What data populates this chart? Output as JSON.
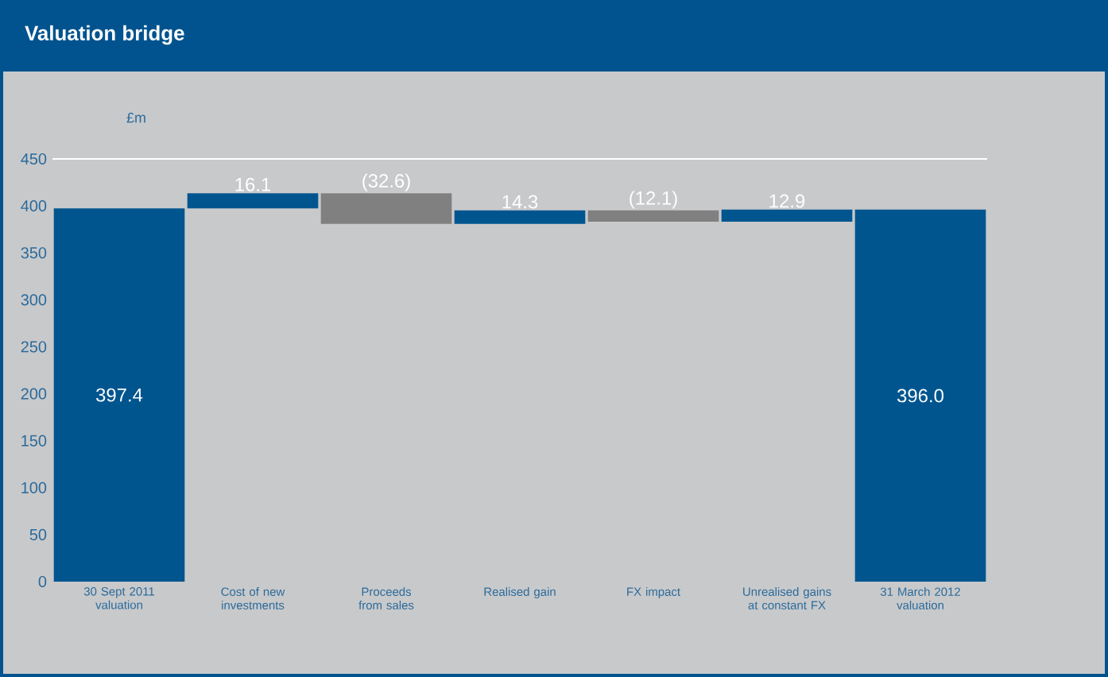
{
  "chart_data": {
    "type": "bar",
    "title": "Valuation bridge",
    "ylabel": "£m",
    "categories": [
      "30 Sept 2011 valuation",
      "Cost of new investments",
      "Proceeds from sales",
      "Realised gain",
      "FX impact",
      "Unrealised gains at constant FX",
      "31 March 2012 valuation"
    ],
    "values": [
      397.4,
      16.1,
      -32.6,
      14.3,
      -12.1,
      12.9,
      396.0
    ],
    "base": [
      0,
      397.4,
      413.5,
      380.9,
      395.2,
      383.1,
      0
    ],
    "colors": [
      "#00558f",
      "#00558f",
      "#808080",
      "#00558f",
      "#808080",
      "#00558f",
      "#00558f"
    ],
    "value_labels": [
      "397.4",
      "16.1",
      "(32.6)",
      "14.3",
      "(12.1)",
      "12.9",
      "396.0"
    ],
    "ylim": [
      0,
      450
    ],
    "yticks": [
      0,
      50,
      100,
      150,
      200,
      250,
      300,
      350,
      400,
      450
    ]
  }
}
